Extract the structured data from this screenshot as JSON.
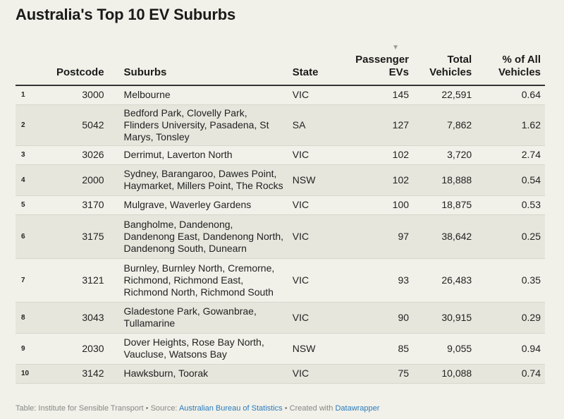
{
  "title": "Australia's Top 10 EV Suburbs",
  "columns": {
    "rank": "",
    "postcode": "Postcode",
    "suburbs": "Suburbs",
    "state": "State",
    "evs": "Passenger EVs",
    "total": "Total Vehicles",
    "pct": "% of All Vehicles"
  },
  "sort_indicator": "▼",
  "footer": {
    "table_by": "Table: Institute for Sensible Transport",
    "sep": " • ",
    "source_label": "Source: ",
    "source_link": "Australian Bureau of Statistics",
    "created_label": "Created with ",
    "created_link": "Datawrapper"
  },
  "chart_data": {
    "type": "table",
    "title": "Australia's Top 10 EV Suburbs",
    "columns": [
      "",
      "Postcode",
      "Suburbs",
      "State",
      "Passenger EVs",
      "Total Vehicles",
      "% of All Vehicles"
    ],
    "rows": [
      {
        "rank": "1",
        "postcode": "3000",
        "suburbs": "Melbourne",
        "state": "VIC",
        "evs": "145",
        "total": "22,591",
        "pct": "0.64"
      },
      {
        "rank": "2",
        "postcode": "5042",
        "suburbs": "Bedford Park, Clovelly Park, Flinders University, Pasadena, St Marys, Tonsley",
        "state": "SA",
        "evs": "127",
        "total": "7,862",
        "pct": "1.62"
      },
      {
        "rank": "3",
        "postcode": "3026",
        "suburbs": "Derrimut, Laverton North",
        "state": "VIC",
        "evs": "102",
        "total": "3,720",
        "pct": "2.74"
      },
      {
        "rank": "4",
        "postcode": "2000",
        "suburbs": "Sydney, Barangaroo, Dawes Point, Haymarket, Millers Point, The Rocks",
        "state": "NSW",
        "evs": "102",
        "total": "18,888",
        "pct": "0.54"
      },
      {
        "rank": "5",
        "postcode": "3170",
        "suburbs": "Mulgrave, Waverley Gardens",
        "state": "VIC",
        "evs": "100",
        "total": "18,875",
        "pct": "0.53"
      },
      {
        "rank": "6",
        "postcode": "3175",
        "suburbs": "Bangholme, Dandenong, Dandenong East, Dandenong North, Dandenong South, Dunearn",
        "state": "VIC",
        "evs": "97",
        "total": "38,642",
        "pct": "0.25"
      },
      {
        "rank": "7",
        "postcode": "3121",
        "suburbs": "Burnley, Burnley North, Cremorne, Richmond, Richmond East, Richmond North, Richmond South",
        "state": "VIC",
        "evs": "93",
        "total": "26,483",
        "pct": "0.35"
      },
      {
        "rank": "8",
        "postcode": "3043",
        "suburbs": "Gladestone Park, Gowanbrae, Tullamarine",
        "state": "VIC",
        "evs": "90",
        "total": "30,915",
        "pct": "0.29"
      },
      {
        "rank": "9",
        "postcode": "2030",
        "suburbs": "Dover Heights, Rose Bay North, Vaucluse, Watsons Bay",
        "state": "NSW",
        "evs": "85",
        "total": "9,055",
        "pct": "0.94"
      },
      {
        "rank": "10",
        "postcode": "3142",
        "suburbs": "Hawksburn, Toorak",
        "state": "VIC",
        "evs": "75",
        "total": "10,088",
        "pct": "0.74"
      }
    ]
  }
}
